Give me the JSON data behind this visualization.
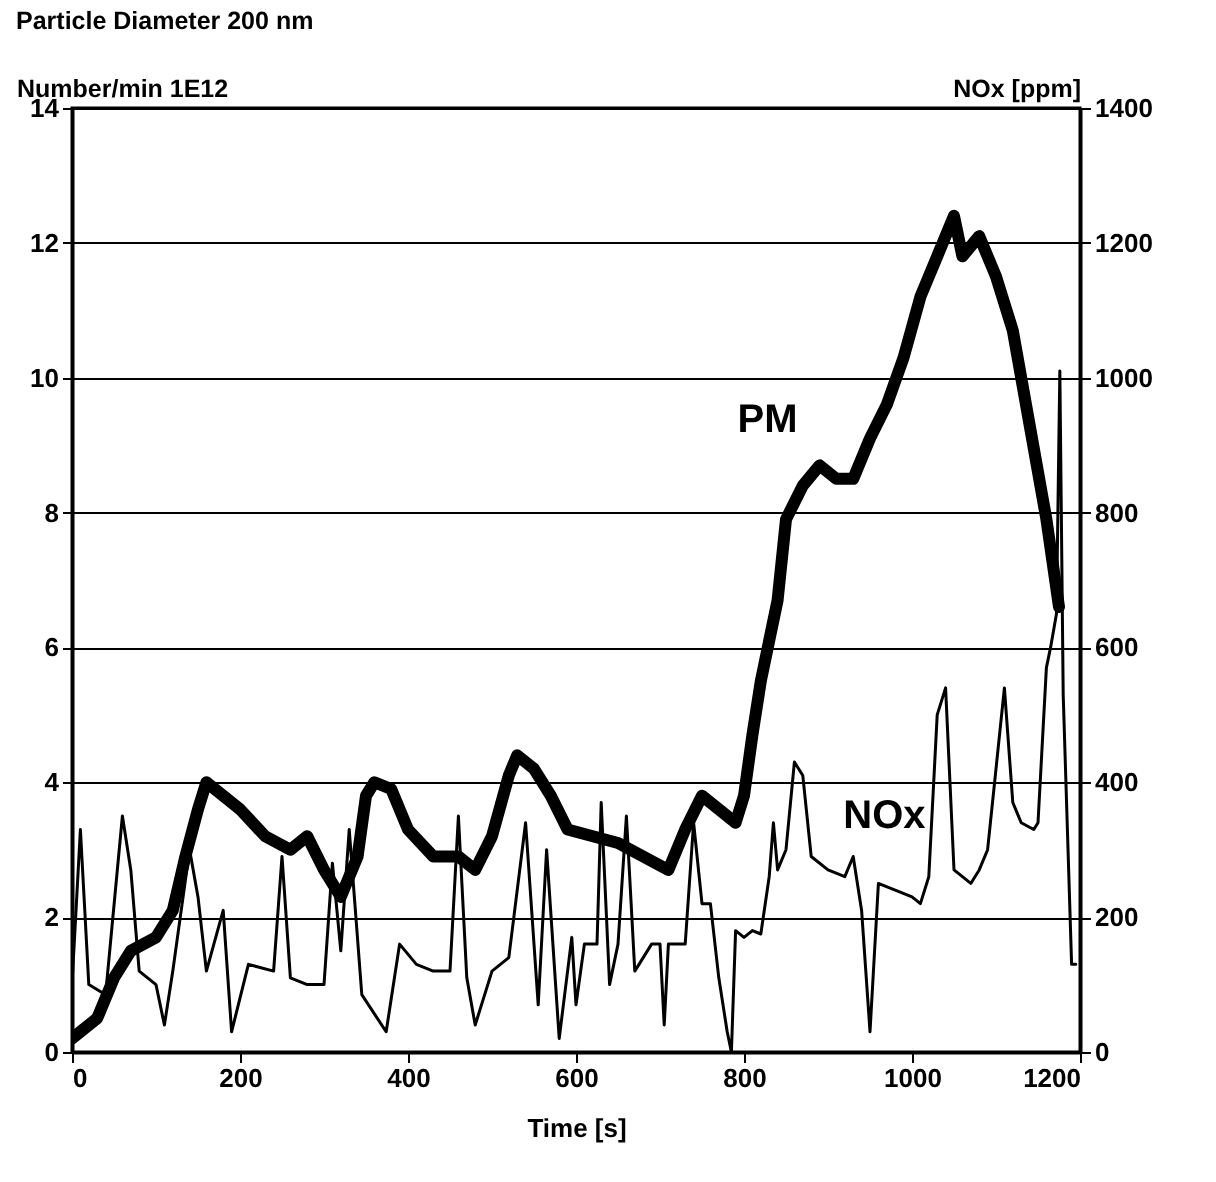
{
  "chart_data": {
    "type": "line",
    "title": "Particle Diameter 200 nm",
    "ylabel": "Number/min 1E12",
    "y2label": "NOx [ppm]",
    "xlabel": "Time  [s]",
    "xlim": [
      0,
      1200
    ],
    "xticks": [
      0,
      200,
      400,
      600,
      800,
      1000,
      1200
    ],
    "ylim": [
      0,
      14
    ],
    "yticks": [
      0,
      2,
      4,
      6,
      8,
      10,
      12,
      14
    ],
    "y2lim": [
      0,
      1400
    ],
    "y2ticks": [
      0,
      200,
      400,
      600,
      800,
      1000,
      1200,
      1400
    ],
    "grid": "y",
    "line_style": "solid",
    "series": [
      {
        "name": "PM",
        "color": "#000000",
        "x": [
          0,
          10,
          30,
          50,
          70,
          100,
          120,
          135,
          150,
          160,
          180,
          200,
          230,
          260,
          280,
          300,
          320,
          340,
          350,
          360,
          380,
          400,
          430,
          460,
          480,
          500,
          520,
          530,
          550,
          570,
          590,
          620,
          650,
          680,
          710,
          730,
          750,
          770,
          790,
          800,
          810,
          820,
          840,
          850,
          870,
          890,
          910,
          930,
          950,
          970,
          990,
          1010,
          1030,
          1050,
          1060,
          1080,
          1100,
          1120,
          1140,
          1160,
          1175
        ],
        "values": [
          0.2,
          0.3,
          0.5,
          1.1,
          1.5,
          1.7,
          2.1,
          2.9,
          3.6,
          4.0,
          3.8,
          3.6,
          3.2,
          3.0,
          3.2,
          2.7,
          2.3,
          2.9,
          3.8,
          4.0,
          3.9,
          3.3,
          2.9,
          2.9,
          2.7,
          3.2,
          4.1,
          4.4,
          4.2,
          3.8,
          3.3,
          3.2,
          3.1,
          2.9,
          2.7,
          3.3,
          3.8,
          3.6,
          3.4,
          3.8,
          4.7,
          5.5,
          6.7,
          7.9,
          8.4,
          8.7,
          8.5,
          8.5,
          9.1,
          9.6,
          10.3,
          11.2,
          11.8,
          12.4,
          11.8,
          12.1,
          11.5,
          10.7,
          9.3,
          7.9,
          6.6
        ]
      },
      {
        "name": "NOx",
        "color": "#000000",
        "axis": "y2",
        "x": [
          0,
          10,
          20,
          40,
          60,
          70,
          80,
          100,
          110,
          120,
          140,
          150,
          160,
          180,
          190,
          210,
          240,
          250,
          260,
          280,
          300,
          310,
          320,
          330,
          345,
          374,
          390,
          410,
          430,
          450,
          460,
          470,
          480,
          500,
          520,
          540,
          555,
          565,
          580,
          595,
          600,
          610,
          625,
          630,
          640,
          650,
          660,
          670,
          690,
          700,
          705,
          710,
          730,
          740,
          750,
          760,
          770,
          780,
          785,
          790,
          800,
          810,
          820,
          830,
          835,
          840,
          850,
          860,
          870,
          880,
          900,
          920,
          930,
          940,
          950,
          960,
          980,
          1000,
          1010,
          1020,
          1030,
          1040,
          1050,
          1070,
          1080,
          1090,
          1100,
          1110,
          1120,
          1130,
          1145,
          1150,
          1160,
          1165,
          1172,
          1176,
          1180,
          1190,
          1195
        ],
        "values": [
          100,
          330,
          100,
          85,
          350,
          270,
          120,
          100,
          40,
          120,
          300,
          230,
          120,
          210,
          30,
          130,
          120,
          290,
          110,
          100,
          100,
          280,
          150,
          330,
          85,
          30,
          160,
          130,
          120,
          120,
          350,
          110,
          40,
          120,
          140,
          340,
          70,
          300,
          20,
          170,
          70,
          160,
          160,
          370,
          100,
          160,
          350,
          120,
          160,
          160,
          40,
          160,
          160,
          340,
          220,
          220,
          110,
          30,
          0,
          180,
          170,
          180,
          175,
          260,
          340,
          270,
          300,
          430,
          410,
          290,
          270,
          260,
          290,
          210,
          30,
          250,
          240,
          230,
          220,
          260,
          500,
          540,
          270,
          250,
          270,
          300,
          420,
          540,
          370,
          340,
          330,
          340,
          570,
          600,
          650,
          1010,
          530,
          130,
          130
        ]
      }
    ]
  }
}
